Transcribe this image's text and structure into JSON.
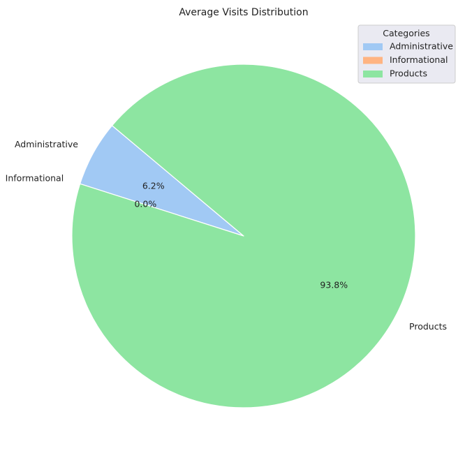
{
  "chart_data": {
    "type": "pie",
    "title": "Average Visits Distribution",
    "categories": [
      "Administrative",
      "Informational",
      "Products"
    ],
    "values": [
      6.2,
      0.0,
      93.8
    ],
    "value_labels": [
      "6.2%",
      "0.0%",
      "93.8%"
    ],
    "colors": [
      "#a1c9f4",
      "#ffb482",
      "#8de5a1"
    ],
    "start_angle_deg": 140,
    "direction": "counterclockwise",
    "legend": {
      "title": "Categories",
      "placement": "top-right"
    }
  }
}
